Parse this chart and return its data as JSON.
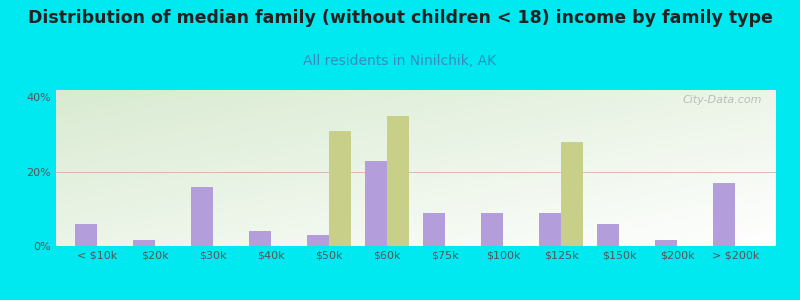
{
  "title": "Distribution of median family (without children < 18) income by family type",
  "subtitle": "All residents in Ninilchik, AK",
  "categories": [
    "< $10k",
    "$20k",
    "$30k",
    "$40k",
    "$50k",
    "$60k",
    "$75k",
    "$100k",
    "$125k",
    "$150k",
    "$200k",
    "> $200k"
  ],
  "married_couple": [
    6,
    1.5,
    16,
    4,
    3,
    23,
    9,
    9,
    9,
    6,
    1.5,
    17
  ],
  "female_no_husband": [
    0,
    0,
    0,
    0,
    31,
    35,
    0,
    0,
    28,
    0,
    0,
    0
  ],
  "married_color": "#b39ddb",
  "female_color": "#c8cf88",
  "background_color": "#00e8f0",
  "title_color": "#222222",
  "subtitle_color": "#3a8abf",
  "axis_color": "#555555",
  "ylim": [
    0,
    42
  ],
  "yticks": [
    0,
    20,
    40
  ],
  "ytick_labels": [
    "0%",
    "20%",
    "40%"
  ],
  "watermark": "City-Data.com",
  "bar_width": 0.38,
  "title_fontsize": 12.5,
  "subtitle_fontsize": 10,
  "legend_fontsize": 9,
  "tick_fontsize": 8
}
